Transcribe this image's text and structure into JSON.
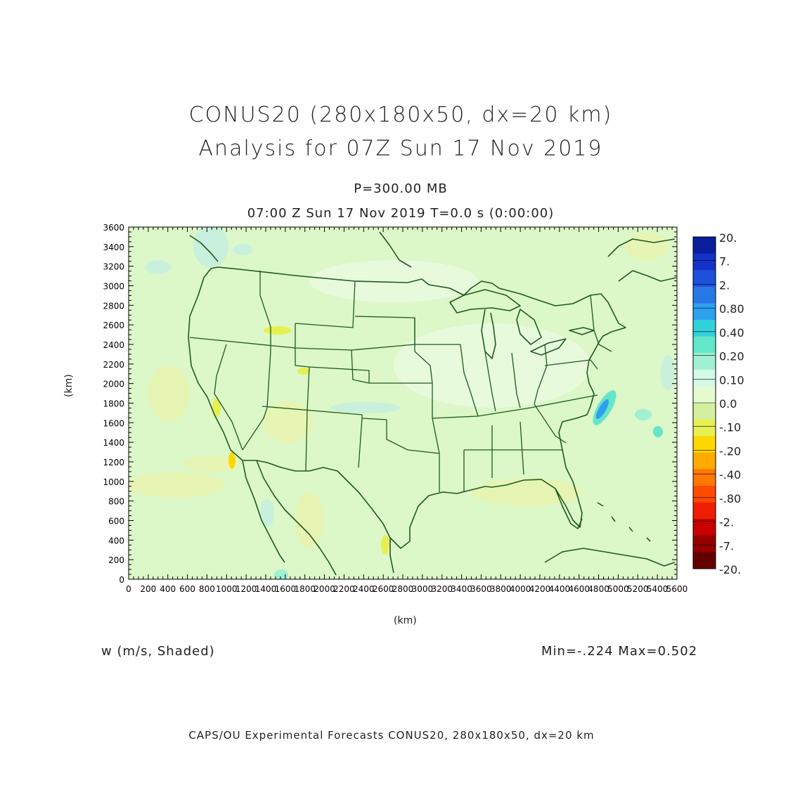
{
  "header": {
    "title_line1": "CONUS20 (280x180x50, dx=20 km)",
    "title_line2": "Analysis for 07Z Sun 17 Nov 2019",
    "level": "P=300.00 MB",
    "valid_time": "07:00 Z Sun 17 Nov 2019     T=0.0 s (0:00:00)"
  },
  "axes": {
    "y_label": "(km)",
    "x_label": "(km)",
    "y_ticks": [
      "0",
      "200",
      "400",
      "600",
      "800",
      "1000",
      "1200",
      "1400",
      "1600",
      "1800",
      "2000",
      "2200",
      "2400",
      "2600",
      "2800",
      "3000",
      "3200",
      "3400",
      "3600"
    ],
    "x_ticks": [
      "0",
      "200",
      "400",
      "600",
      "800",
      "1000",
      "1200",
      "1400",
      "1600",
      "1800",
      "2000",
      "2200",
      "2400",
      "2600",
      "2800",
      "3000",
      "3200",
      "3400",
      "3600",
      "3800",
      "4000",
      "4200",
      "4400",
      "4600",
      "4800",
      "5000",
      "5200",
      "5400",
      "5600"
    ],
    "x_range": [
      0,
      5600
    ],
    "y_range": [
      0,
      3600
    ]
  },
  "colorbar": {
    "labels": [
      "20.",
      "7.",
      "2.",
      "0.80",
      "0.40",
      "0.20",
      "0.10",
      "0.0",
      "-.10",
      "-.20",
      "-.40",
      "-.80",
      "-2.",
      "-7.",
      "-20."
    ],
    "colors": [
      "#0a1e9c",
      "#1432c8",
      "#1e50dc",
      "#2878e6",
      "#2ea0f0",
      "#32d2dc",
      "#64e6c8",
      "#a0f0d2",
      "#d2fae6",
      "#e6fad2",
      "#d2f0a0",
      "#e6f050",
      "#ffd700",
      "#ffaa00",
      "#ff7800",
      "#ff4b00",
      "#f01e00",
      "#c80000",
      "#960000",
      "#640000"
    ]
  },
  "field": {
    "variable": "w (m/s, Shaded)",
    "minmax": "Min=-.224  Max=0.502",
    "background_color": "#dcf7c8",
    "boundary_color": "#1e5a1e"
  },
  "footer": {
    "credit": "CAPS/OU Experimental Forecasts  CONUS20, 280x180x50, dx=20 km"
  }
}
